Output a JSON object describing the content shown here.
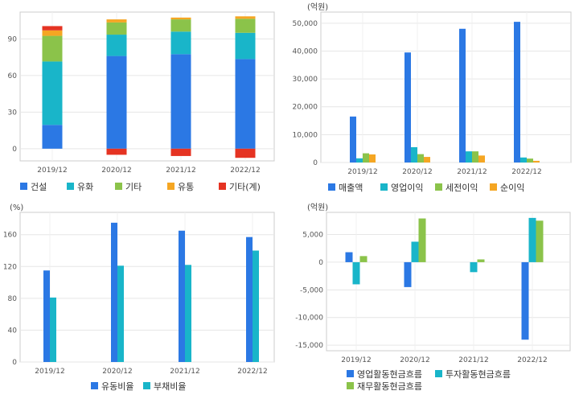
{
  "chart_data": [
    {
      "type": "bar",
      "stacked": true,
      "unit": "",
      "categories": [
        "2019/12",
        "2020/12",
        "2021/12",
        "2022/12"
      ],
      "series": [
        {
          "name": "건설",
          "color": "#2b78e4",
          "values": [
            19.5,
            76,
            77.5,
            73.5
          ]
        },
        {
          "name": "유화",
          "color": "#19b5c9",
          "values": [
            52,
            17.5,
            18.5,
            21.5
          ]
        },
        {
          "name": "기타",
          "color": "#8bc34a",
          "values": [
            21,
            10,
            10,
            11.5
          ]
        },
        {
          "name": "유통",
          "color": "#f5a623",
          "values": [
            4.5,
            2.5,
            1.5,
            2
          ]
        },
        {
          "name": "기타(계)",
          "color": "#e53322",
          "values": [
            3.5,
            -5,
            -6,
            -7.5
          ]
        }
      ],
      "yticks": [
        "0",
        "30",
        "60",
        "90"
      ],
      "ylim": [
        -10,
        112
      ],
      "grid": true,
      "legend": "bottom"
    },
    {
      "type": "bar",
      "unit": "(억원)",
      "categories": [
        "2019/12",
        "2020/12",
        "2021/12",
        "2022/12"
      ],
      "series": [
        {
          "name": "매출액",
          "color": "#2b78e4",
          "values": [
            16500,
            39500,
            48000,
            50500
          ]
        },
        {
          "name": "영업이익",
          "color": "#19b5c9",
          "values": [
            1500,
            5500,
            4000,
            1800
          ]
        },
        {
          "name": "세전이익",
          "color": "#8bc34a",
          "values": [
            3300,
            3000,
            4000,
            1400
          ]
        },
        {
          "name": "순이익",
          "color": "#f5a623",
          "values": [
            2900,
            2000,
            2500,
            600
          ]
        }
      ],
      "yticks": [
        "0",
        "10,000",
        "20,000",
        "30,000",
        "40,000",
        "50,000"
      ],
      "ylim": [
        0,
        54000
      ],
      "grid": true,
      "legend": "bottom"
    },
    {
      "type": "bar",
      "unit": "(%)",
      "categories": [
        "2019/12",
        "2020/12",
        "2021/12",
        "2022/12"
      ],
      "series": [
        {
          "name": "유동비율",
          "color": "#2b78e4",
          "values": [
            115,
            175,
            165,
            157
          ]
        },
        {
          "name": "부채비율",
          "color": "#19b5c9",
          "values": [
            81,
            121,
            122,
            140
          ]
        }
      ],
      "yticks": [
        "0",
        "40",
        "80",
        "120",
        "160"
      ],
      "ylim": [
        0,
        188
      ],
      "grid": true,
      "legend": "bottom"
    },
    {
      "type": "bar",
      "unit": "(억원)",
      "categories": [
        "2019/12",
        "2020/12",
        "2021/12",
        "2022/12"
      ],
      "series": [
        {
          "name": "영업활동현금흐름",
          "color": "#2b78e4",
          "values": [
            1800,
            -4500,
            0,
            -14000
          ]
        },
        {
          "name": "투자활동현금흐름",
          "color": "#19b5c9",
          "values": [
            -4000,
            3700,
            -1800,
            8000
          ]
        },
        {
          "name": "재무활동현금흐름",
          "color": "#8bc34a",
          "values": [
            1100,
            7900,
            500,
            7500
          ]
        }
      ],
      "yticks": [
        "-15,000",
        "-10,000",
        "-5,000",
        "0",
        "5,000"
      ],
      "ylim": [
        -16000,
        9000
      ],
      "grid": true,
      "legend": "bottom"
    }
  ]
}
